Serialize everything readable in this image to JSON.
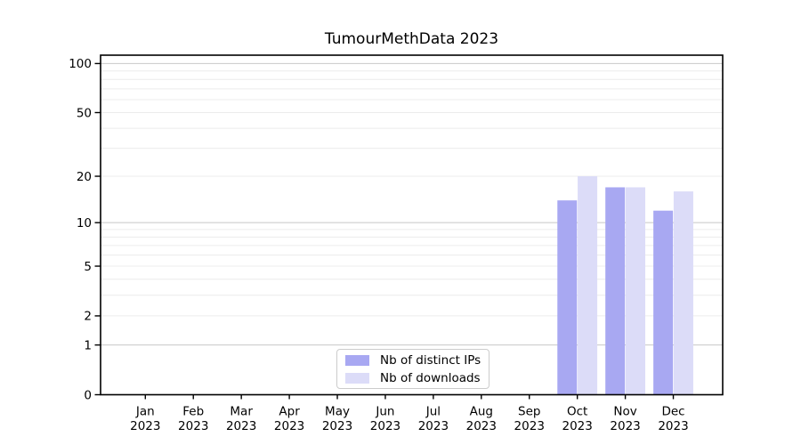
{
  "window": {
    "background_color": "#ffffff"
  },
  "chart_data": {
    "type": "bar",
    "title": "TumourMethData 2023",
    "categories": [
      "Jan 2023",
      "Feb 2023",
      "Mar 2023",
      "Apr 2023",
      "May 2023",
      "Jun 2023",
      "Jul 2023",
      "Aug 2023",
      "Sep 2023",
      "Oct 2023",
      "Nov 2023",
      "Dec 2023"
    ],
    "series": [
      {
        "name": "Nb of distinct IPs",
        "color": "#a8a8f2",
        "values": [
          0,
          0,
          0,
          0,
          0,
          0,
          0,
          0,
          0,
          14,
          17,
          12
        ]
      },
      {
        "name": "Nb of downloads",
        "color": "#dcdcf8",
        "values": [
          0,
          0,
          0,
          0,
          0,
          0,
          0,
          0,
          0,
          20,
          17,
          16
        ]
      }
    ],
    "yticks": [
      0,
      1,
      2,
      5,
      10,
      20,
      50,
      100
    ],
    "xlabel": "",
    "ylabel": "",
    "yscale": "log1p",
    "ylim": [
      0,
      113
    ],
    "grid": true,
    "legend_position": "lower center",
    "colors": {
      "major_gridline": "#c8c8c8",
      "minor_gridline": "#ececec",
      "axis": "#000000"
    }
  }
}
